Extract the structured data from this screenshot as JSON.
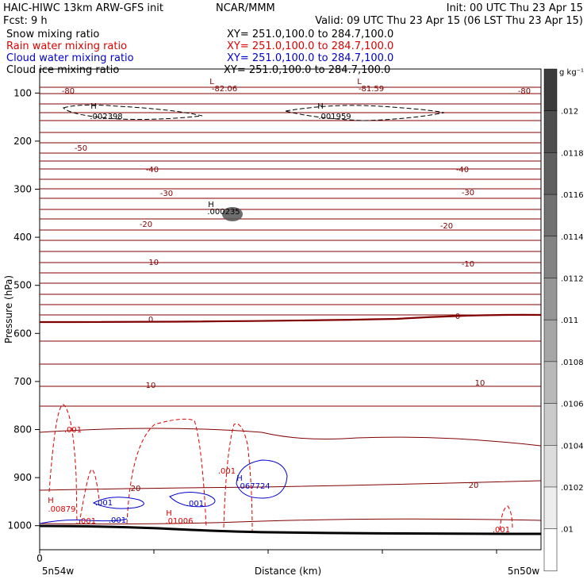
{
  "header": {
    "left_line1": "HAIC-HIWC 13km ARW-GFS init",
    "left_line2": "Fcst:    9 h",
    "center": "NCAR/MMM",
    "init": "Init: 00 UTC Thu 23 Apr 15",
    "valid": "Valid: 09 UTC Thu 23 Apr 15 (06 LST Thu 23 Apr 15)"
  },
  "fields": [
    {
      "name": "Snow mixing ratio",
      "xy": "XY= 251.0,100.0 to 284.7,100.0",
      "color": "#000000"
    },
    {
      "name": "Rain water mixing ratio",
      "xy": "XY= 251.0,100.0 to 284.7,100.0",
      "color": "#dd0000"
    },
    {
      "name": "Cloud water mixing ratio",
      "xy": "XY= 251.0,100.0 to 284.7,100.0",
      "color": "#0000cc"
    },
    {
      "name": "Cloud ice mixing ratio",
      "xy": "XY= 251.0,100.0 to 284.7,100.0",
      "color": "#000000"
    }
  ],
  "chart_data": {
    "type": "contour",
    "xlabel": "Distance (km)",
    "ylabel": "Pressure (hPa)",
    "x_tick_labels": [
      "0",
      "5n54w",
      "5n50w"
    ],
    "y_ticks": [
      100,
      200,
      300,
      400,
      500,
      600,
      700,
      800,
      900,
      1000
    ],
    "ylim": [
      1050,
      50
    ],
    "colorbar": {
      "unit": "g kg⁻¹",
      "labels": [
        ".012",
        ".0118",
        ".0116",
        ".0114",
        ".0112",
        ".011",
        ".0108",
        ".0106",
        ".0104",
        ".0102",
        ".01"
      ]
    },
    "temperature_labels": [
      "-80",
      "-80",
      "-82.06",
      "-81.59",
      "-50",
      "-40",
      "-40",
      "-30",
      "-30",
      "-20",
      "-20",
      "-10",
      "-10",
      "0",
      "0",
      "10",
      "10",
      "20",
      "20"
    ],
    "extrema": [
      {
        "type": "L",
        "value": "-82.06",
        "color": "#800000"
      },
      {
        "type": "L",
        "value": "-81.59",
        "color": "#800000"
      },
      {
        "type": "H",
        "value": ".002398",
        "color": "#000000"
      },
      {
        "type": "H",
        "value": ".001959",
        "color": "#000000"
      },
      {
        "type": "H",
        "value": ".000235",
        "color": "#000000"
      },
      {
        "type": "H",
        "value": ".00879",
        "color": "#dd0000"
      },
      {
        "type": "H",
        "value": ".01006",
        "color": "#dd0000"
      },
      {
        "type": "H",
        "value": ".067724",
        "color": "#0000cc"
      }
    ],
    "contour_labels": [
      {
        "value": ".001",
        "color": "#dd0000"
      },
      {
        "value": ".001",
        "color": "#dd0000"
      },
      {
        "value": ".001",
        "color": "#dd0000"
      },
      {
        "value": ".001",
        "color": "#0000cc"
      },
      {
        "value": ".001",
        "color": "#0000cc"
      },
      {
        "value": ".001",
        "color": "#0000cc"
      },
      {
        "value": ".001",
        "color": "#dd0000"
      }
    ]
  }
}
